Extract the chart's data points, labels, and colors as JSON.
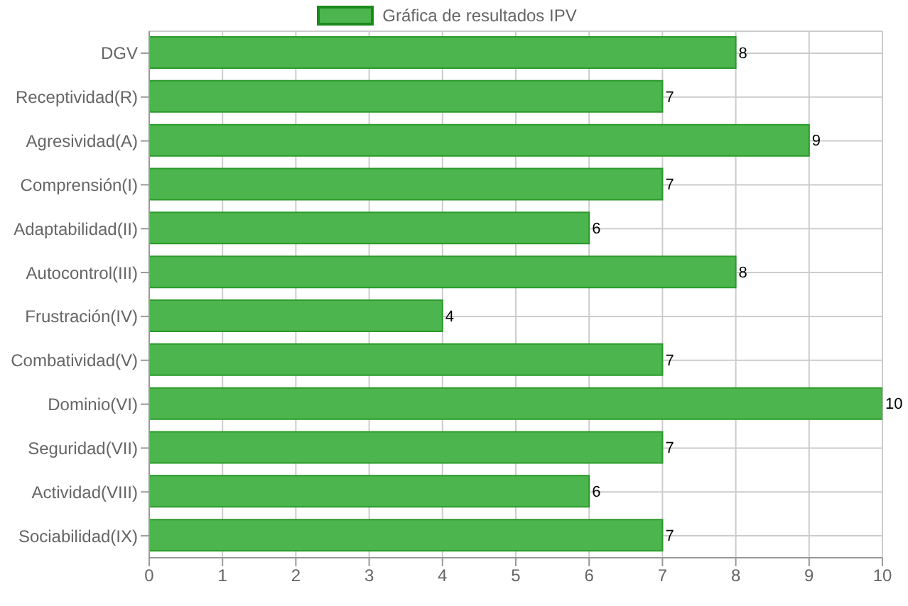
{
  "chart_data": {
    "type": "bar",
    "orientation": "horizontal",
    "categories": [
      "DGV",
      "Receptividad(R)",
      "Agresividad(A)",
      "Comprensión(I)",
      "Adaptabilidad(II)",
      "Autocontrol(III)",
      "Frustración(IV)",
      "Combatividad(V)",
      "Dominio(VI)",
      "Seguridad(VII)",
      "Actividad(VIII)",
      "Sociabilidad(IX)"
    ],
    "series": [
      {
        "name": "Gráfica de resultados IPV",
        "color": "#4db54d",
        "values": [
          8,
          7,
          9,
          7,
          6,
          8,
          4,
          7,
          10,
          7,
          6,
          7
        ]
      }
    ],
    "xlim": [
      0,
      10
    ],
    "xticks": [
      0,
      1,
      2,
      3,
      4,
      5,
      6,
      7,
      8,
      9,
      10
    ],
    "grid": true,
    "legend": "top",
    "data_labels": true
  }
}
